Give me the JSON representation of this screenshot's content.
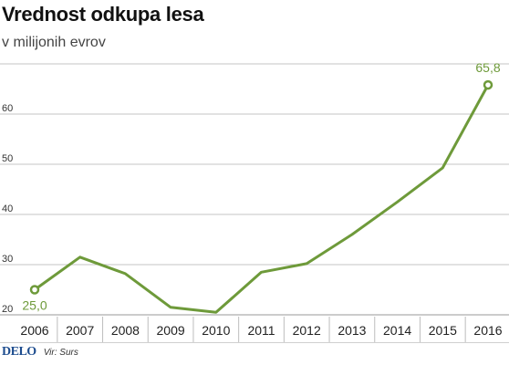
{
  "title": "Vrednost odkupa lesa",
  "subtitle": "v milijonih evrov",
  "footer": {
    "logo": "DELO",
    "source": "Vir: Surs"
  },
  "colors": {
    "line": "#6e9a3a",
    "grid": "#c6c6c6",
    "axis": "#9a9a9a",
    "logo": "#1e4d8f",
    "text": "#222222"
  },
  "chart_data": {
    "type": "line",
    "title": "Vrednost odkupa lesa",
    "subtitle": "v milijonih evrov",
    "x": [
      "2006",
      "2007",
      "2008",
      "2009",
      "2010",
      "2011",
      "2012",
      "2013",
      "2014",
      "2015",
      "2016"
    ],
    "series": [
      {
        "values": [
          25.0,
          31.5,
          28.2,
          21.5,
          20.5,
          28.5,
          30.2,
          36.0,
          42.5,
          49.3,
          65.8
        ]
      }
    ],
    "yticks": [
      "20",
      "30",
      "40",
      "50",
      "60"
    ],
    "gridlines": [
      20,
      30,
      40,
      50,
      60,
      70
    ],
    "ylim": [
      20,
      70
    ],
    "grid": true,
    "legend": "none",
    "markers": "open circles at first and last point",
    "data_labels": [
      {
        "x": "2006",
        "label": "25,0"
      },
      {
        "x": "2016",
        "label": "65,8"
      }
    ]
  }
}
